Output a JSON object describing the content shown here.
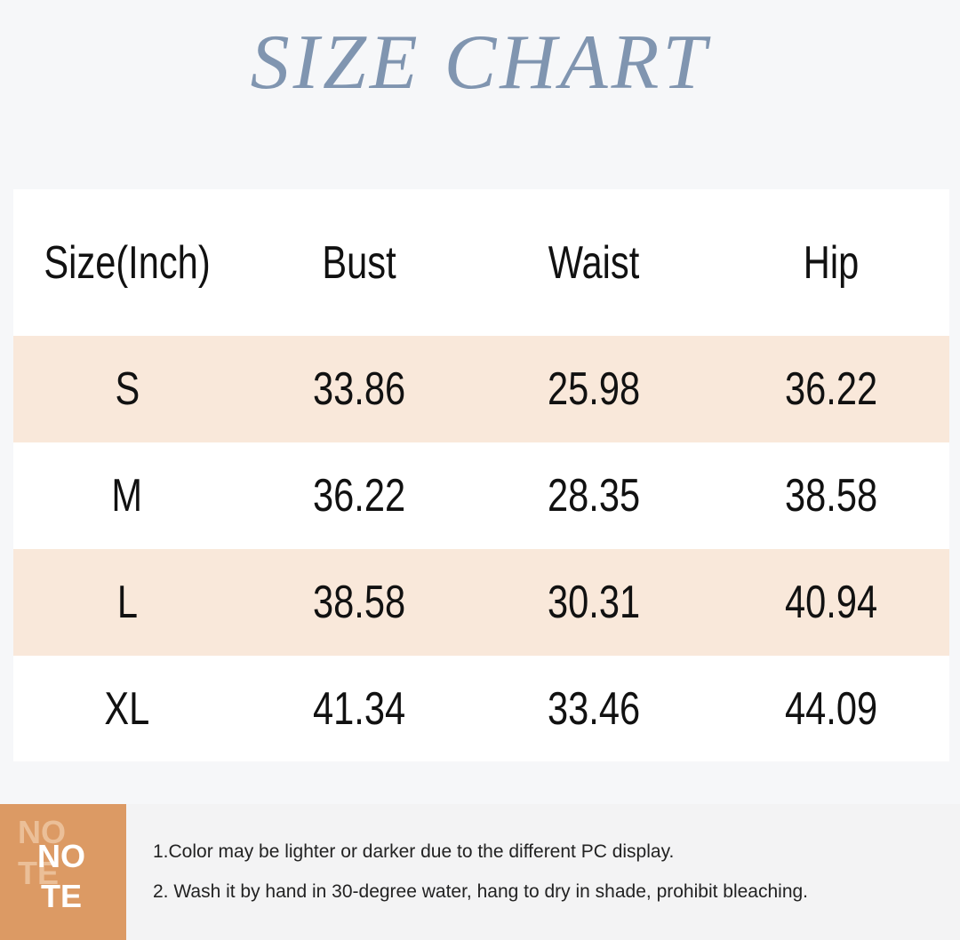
{
  "title": "SIZE CHART",
  "table": {
    "header": [
      "Size(Inch)",
      "Bust",
      "Waist",
      "Hip"
    ],
    "rows": [
      [
        "S",
        "33.86",
        "25.98",
        "36.22"
      ],
      [
        "M",
        "36.22",
        "28.35",
        "38.58"
      ],
      [
        "L",
        "38.58",
        "30.31",
        "40.94"
      ],
      [
        "XL",
        "41.34",
        "33.46",
        "44.09"
      ]
    ]
  },
  "note": {
    "label": [
      "NO",
      "TE"
    ],
    "lines": [
      "1.Color may be lighter or darker due to the different PC display.",
      "2. Wash it by hand in 30-degree water, hang to dry in shade, prohibit bleaching."
    ]
  }
}
